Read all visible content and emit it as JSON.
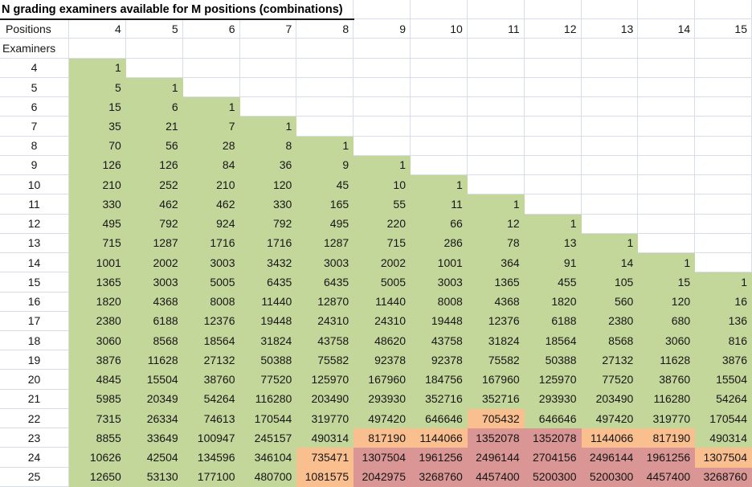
{
  "title": "N grading examiners available for M positions (combinations)",
  "axis_labels": {
    "columns_label": "Positions",
    "rows_label": "Examiners"
  },
  "columns": [
    "4",
    "5",
    "6",
    "7",
    "8",
    "9",
    "10",
    "11",
    "12",
    "13",
    "14",
    "15"
  ],
  "colors": {
    "green": "#c4d79b",
    "orange": "#fabf8f",
    "red": "#d99694",
    "gridline": "#d7dde8",
    "title_border": "#1b1b1b",
    "text": "#161616"
  },
  "color_legend": {
    "g": "green",
    "o": "orange",
    "r": "red",
    "w": "white"
  },
  "rows": [
    {
      "examiners": "4",
      "values": [
        "1",
        "",
        "",
        "",
        "",
        "",
        "",
        "",
        "",
        "",
        "",
        ""
      ],
      "colors": "gwwwwwwwwwww"
    },
    {
      "examiners": "5",
      "values": [
        "5",
        "1",
        "",
        "",
        "",
        "",
        "",
        "",
        "",
        "",
        "",
        ""
      ],
      "colors": "ggwwwwwwwwww"
    },
    {
      "examiners": "6",
      "values": [
        "15",
        "6",
        "1",
        "",
        "",
        "",
        "",
        "",
        "",
        "",
        "",
        ""
      ],
      "colors": "gggwwwwwwwww"
    },
    {
      "examiners": "7",
      "values": [
        "35",
        "21",
        "7",
        "1",
        "",
        "",
        "",
        "",
        "",
        "",
        "",
        ""
      ],
      "colors": "ggggwwwwwwww"
    },
    {
      "examiners": "8",
      "values": [
        "70",
        "56",
        "28",
        "8",
        "1",
        "",
        "",
        "",
        "",
        "",
        "",
        ""
      ],
      "colors": "gggggwwwwwww"
    },
    {
      "examiners": "9",
      "values": [
        "126",
        "126",
        "84",
        "36",
        "9",
        "1",
        "",
        "",
        "",
        "",
        "",
        ""
      ],
      "colors": "ggggggwwwwww"
    },
    {
      "examiners": "10",
      "values": [
        "210",
        "252",
        "210",
        "120",
        "45",
        "10",
        "1",
        "",
        "",
        "",
        "",
        ""
      ],
      "colors": "gggggggwwwww"
    },
    {
      "examiners": "11",
      "values": [
        "330",
        "462",
        "462",
        "330",
        "165",
        "55",
        "11",
        "1",
        "",
        "",
        "",
        ""
      ],
      "colors": "ggggggggwwww"
    },
    {
      "examiners": "12",
      "values": [
        "495",
        "792",
        "924",
        "792",
        "495",
        "220",
        "66",
        "12",
        "1",
        "",
        "",
        ""
      ],
      "colors": "gggggggggwww"
    },
    {
      "examiners": "13",
      "values": [
        "715",
        "1287",
        "1716",
        "1716",
        "1287",
        "715",
        "286",
        "78",
        "13",
        "1",
        "",
        ""
      ],
      "colors": "ggggggggggww"
    },
    {
      "examiners": "14",
      "values": [
        "1001",
        "2002",
        "3003",
        "3432",
        "3003",
        "2002",
        "1001",
        "364",
        "91",
        "14",
        "1",
        ""
      ],
      "colors": "gggggggggggw"
    },
    {
      "examiners": "15",
      "values": [
        "1365",
        "3003",
        "5005",
        "6435",
        "6435",
        "5005",
        "3003",
        "1365",
        "455",
        "105",
        "15",
        "1"
      ],
      "colors": "gggggggggggg"
    },
    {
      "examiners": "16",
      "values": [
        "1820",
        "4368",
        "8008",
        "11440",
        "12870",
        "11440",
        "8008",
        "4368",
        "1820",
        "560",
        "120",
        "16"
      ],
      "colors": "gggggggggggg"
    },
    {
      "examiners": "17",
      "values": [
        "2380",
        "6188",
        "12376",
        "19448",
        "24310",
        "24310",
        "19448",
        "12376",
        "6188",
        "2380",
        "680",
        "136"
      ],
      "colors": "gggggggggggg"
    },
    {
      "examiners": "18",
      "values": [
        "3060",
        "8568",
        "18564",
        "31824",
        "43758",
        "48620",
        "43758",
        "31824",
        "18564",
        "8568",
        "3060",
        "816"
      ],
      "colors": "gggggggggggg"
    },
    {
      "examiners": "19",
      "values": [
        "3876",
        "11628",
        "27132",
        "50388",
        "75582",
        "92378",
        "92378",
        "75582",
        "50388",
        "27132",
        "11628",
        "3876"
      ],
      "colors": "gggggggggggg"
    },
    {
      "examiners": "20",
      "values": [
        "4845",
        "15504",
        "38760",
        "77520",
        "125970",
        "167960",
        "184756",
        "167960",
        "125970",
        "77520",
        "38760",
        "15504"
      ],
      "colors": "gggggggggggg"
    },
    {
      "examiners": "21",
      "values": [
        "5985",
        "20349",
        "54264",
        "116280",
        "203490",
        "293930",
        "352716",
        "352716",
        "293930",
        "203490",
        "116280",
        "54264"
      ],
      "colors": "gggggggggggg"
    },
    {
      "examiners": "22",
      "values": [
        "7315",
        "26334",
        "74613",
        "170544",
        "319770",
        "497420",
        "646646",
        "705432",
        "646646",
        "497420",
        "319770",
        "170544"
      ],
      "colors": "gggggggogggg"
    },
    {
      "examiners": "23",
      "values": [
        "8855",
        "33649",
        "100947",
        "245157",
        "490314",
        "817190",
        "1144066",
        "1352078",
        "1352078",
        "1144066",
        "817190",
        "490314"
      ],
      "colors": "gggggoorroog"
    },
    {
      "examiners": "24",
      "values": [
        "10626",
        "42504",
        "134596",
        "346104",
        "735471",
        "1307504",
        "1961256",
        "2496144",
        "2704156",
        "2496144",
        "1961256",
        "1307504"
      ],
      "colors": "ggggorrrrrro"
    },
    {
      "examiners": "25",
      "values": [
        "12650",
        "53130",
        "177100",
        "480700",
        "1081575",
        "2042975",
        "3268760",
        "4457400",
        "5200300",
        "5200300",
        "4457400",
        "3268760"
      ],
      "colors": "ggggorrrrrrr"
    }
  ]
}
